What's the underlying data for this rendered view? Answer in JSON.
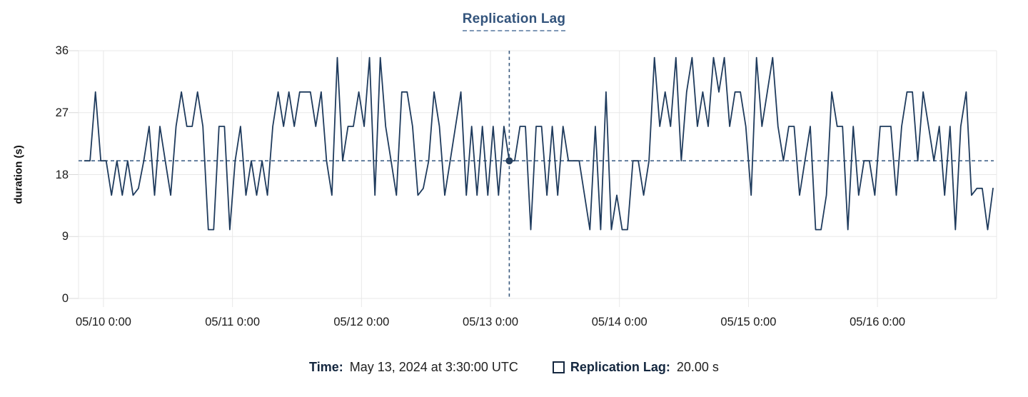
{
  "title": "Replication Lag",
  "y_axis": {
    "label": "duration (s)"
  },
  "tooltip": {
    "time_label": "Time:",
    "time_value": "May 13, 2024 at 3:30:00 UTC",
    "series_label": "Replication Lag:",
    "series_value": "20.00 s"
  },
  "colors": {
    "line": "#1f3b5d",
    "title": "#33547c",
    "reference_dash": "#44658a",
    "crosshair_dash": "#3a5a7e",
    "grid": "#e8e8e8",
    "legend_swatch_border": "#14273f"
  },
  "chart_data": {
    "type": "line",
    "title": "Replication Lag",
    "ylabel": "duration (s)",
    "ylim": [
      0,
      36
    ],
    "y_ticks": [
      36,
      27,
      18,
      9,
      0
    ],
    "x_tick_labels": [
      "05/10 0:00",
      "05/11 0:00",
      "05/12 0:00",
      "05/13 0:00",
      "05/14 0:00",
      "05/15 0:00",
      "05/16 0:00"
    ],
    "interval_minutes": 60,
    "first_tick_index": 3.5,
    "points_per_day": 24,
    "grid": true,
    "legend_position": "bottom",
    "reference_line_y": 20,
    "crosshair": {
      "index": 79,
      "time": "May 13, 2024 at 3:30:00 UTC",
      "value": 20,
      "value_label": "20.00 s"
    },
    "series": [
      {
        "name": "Replication Lag",
        "values": [
          20,
          20,
          30,
          20,
          20,
          15,
          20,
          15,
          20,
          15,
          16,
          20,
          25,
          15,
          25,
          20,
          15,
          25,
          30,
          25,
          25,
          30,
          25,
          10,
          10,
          25,
          25,
          10,
          20,
          25,
          15,
          20,
          15,
          20,
          15,
          25,
          30,
          25,
          30,
          25,
          30,
          30,
          30,
          25,
          30,
          20,
          15,
          35,
          20,
          25,
          25,
          30,
          25,
          35,
          15,
          35,
          25,
          20,
          15,
          30,
          30,
          25,
          15,
          16,
          20,
          30,
          25,
          15,
          20,
          25,
          30,
          15,
          25,
          15,
          25,
          15,
          25,
          15,
          25,
          20,
          20,
          25,
          25,
          10,
          25,
          25,
          15,
          25,
          15,
          25,
          20,
          20,
          20,
          15,
          10,
          25,
          10,
          30,
          10,
          15,
          10,
          10,
          20,
          20,
          15,
          20,
          35,
          25,
          30,
          25,
          35,
          20,
          30,
          35,
          25,
          30,
          25,
          35,
          30,
          35,
          25,
          30,
          30,
          25,
          15,
          35,
          25,
          30,
          35,
          25,
          20,
          25,
          25,
          15,
          20,
          25,
          10,
          10,
          15,
          30,
          25,
          25,
          10,
          25,
          15,
          20,
          20,
          15,
          25,
          25,
          25,
          15,
          25,
          30,
          30,
          20,
          30,
          25,
          20,
          25,
          15,
          25,
          10,
          25,
          30,
          15,
          16,
          16,
          10,
          16
        ]
      }
    ]
  }
}
